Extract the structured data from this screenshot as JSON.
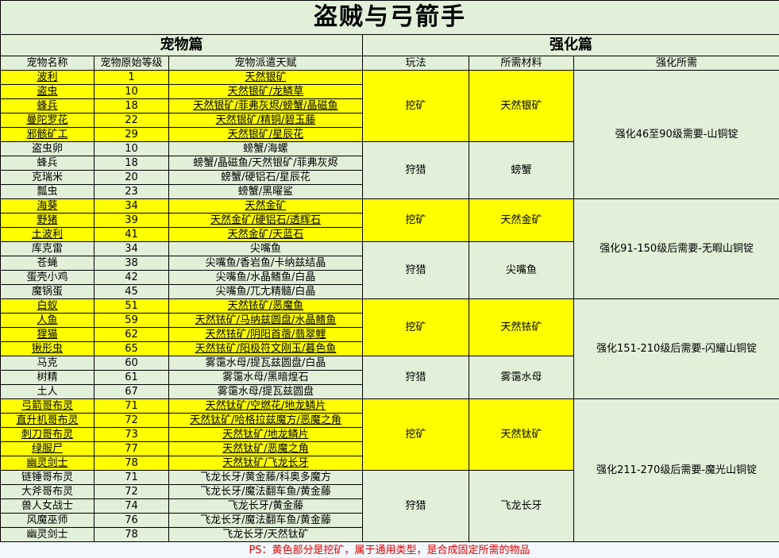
{
  "title": "盗贼与弓箭手",
  "sections": {
    "pet": "宠物篇",
    "enhance": "强化篇"
  },
  "columns": [
    "宠物名称",
    "宠物原始等级",
    "宠物派遣天赋",
    "玩法",
    "所需材料",
    "强化所需"
  ],
  "colors": {
    "mining": "#ffff00",
    "default": "#e2efd9",
    "note": "#e00000"
  },
  "groups": [
    {
      "type": "挖矿",
      "material": "天然银矿",
      "highlight": true,
      "pets": [
        {
          "name": "波利",
          "level": "1",
          "talent": "天然银矿"
        },
        {
          "name": "盗虫",
          "level": "10",
          "talent": "天然银矿/龙鳞草"
        },
        {
          "name": "蜂兵",
          "level": "18",
          "talent": "天然银矿/菲弗灰烬/螃蟹/晶磁鱼"
        },
        {
          "name": "曼陀罗花",
          "level": "22",
          "talent": "天然银矿/精铜/碧玉藤"
        },
        {
          "name": "邪骸矿工",
          "level": "29",
          "talent": "天然银矿/星辰花"
        }
      ]
    },
    {
      "type": "狩猎",
      "material": "螃蟹",
      "highlight": false,
      "pets": [
        {
          "name": "盗虫卵",
          "level": "10",
          "talent": "螃蟹/海螺"
        },
        {
          "name": "蜂兵",
          "level": "18",
          "talent": "螃蟹/晶磁鱼/天然银矿/菲弗灰烬"
        },
        {
          "name": "克瑞米",
          "level": "20",
          "talent": "螃蟹/硬铝石/星辰花"
        },
        {
          "name": "瓢虫",
          "level": "23",
          "talent": "螃蟹/黑曜鲨"
        }
      ]
    },
    {
      "type": "挖矿",
      "material": "天然金矿",
      "highlight": true,
      "pets": [
        {
          "name": "海葵",
          "level": "34",
          "talent": "天然金矿"
        },
        {
          "name": "野猪",
          "level": "39",
          "talent": "天然金矿/硬铝石/透辉石"
        },
        {
          "name": "土波利",
          "level": "41",
          "talent": "天然金矿/天蓝石"
        }
      ]
    },
    {
      "type": "狩猎",
      "material": "尖嘴鱼",
      "highlight": false,
      "pets": [
        {
          "name": "库克雷",
          "level": "34",
          "talent": "尖嘴鱼"
        },
        {
          "name": "苍蝇",
          "level": "38",
          "talent": "尖嘴鱼/香岩鱼/卡纳兹结晶"
        },
        {
          "name": "蛋壳小鸡",
          "level": "42",
          "talent": "尖嘴鱼/水晶鳍鱼/白晶"
        },
        {
          "name": "魔锅蛋",
          "level": "45",
          "talent": "尖嘴鱼/兀尢精髓/白晶"
        }
      ]
    },
    {
      "type": "挖矿",
      "material": "天然铱矿",
      "highlight": true,
      "pets": [
        {
          "name": "白蚁",
          "level": "51",
          "talent": "天然铱矿/恶魔鱼"
        },
        {
          "name": "人鱼",
          "level": "59",
          "talent": "天然铱矿/马纳兹圆盘/水晶鳍鱼"
        },
        {
          "name": "狸猫",
          "level": "62",
          "talent": "天然铱矿/阴阳首蓿/翡翠鲤"
        },
        {
          "name": "锹形虫",
          "level": "65",
          "talent": "天然铱矿/阳极符文刚玉/暮色鱼"
        }
      ]
    },
    {
      "type": "狩猎",
      "material": "雾霭水母",
      "highlight": false,
      "pets": [
        {
          "name": "马克",
          "level": "60",
          "talent": "雾霭水母/提瓦兹圆盘/白晶"
        },
        {
          "name": "树精",
          "level": "61",
          "talent": "雾霭水母/黑暗煌石"
        },
        {
          "name": "土人",
          "level": "67",
          "talent": "雾霭水母/提瓦兹圆盘"
        }
      ]
    },
    {
      "type": "挖矿",
      "material": "天然钛矿",
      "highlight": true,
      "pets": [
        {
          "name": "弓箭哥布灵",
          "level": "71",
          "talent": "天然钛矿/空燃花/地龙鳞片"
        },
        {
          "name": "直升机哥布灵",
          "level": "72",
          "talent": "天然钛矿/哈格拉兹魔方/恶魔之角"
        },
        {
          "name": "刺刀哥布灵",
          "level": "73",
          "talent": "天然钛矿/地龙鳞片"
        },
        {
          "name": "绿服尸",
          "level": "77",
          "talent": "天然钛矿/恶魔之角"
        },
        {
          "name": "幽灵剑士",
          "level": "78",
          "talent": "天然钛矿/飞龙长牙"
        }
      ]
    },
    {
      "type": "狩猎",
      "material": "飞龙长牙",
      "highlight": false,
      "pets": [
        {
          "name": "链锤哥布灵",
          "level": "71",
          "talent": "飞龙长牙/黄金藤/科奥多魔方"
        },
        {
          "name": "大斧哥布灵",
          "level": "72",
          "talent": "飞龙长牙/魔法翻车鱼/黄金藤"
        },
        {
          "name": "兽人女战士",
          "level": "74",
          "talent": "飞龙长牙/黄金藤"
        },
        {
          "name": "风魔巫师",
          "level": "76",
          "talent": "飞龙长牙/魔法翻车鱼/黄金藤"
        },
        {
          "name": "幽灵剑士",
          "level": "78",
          "talent": "飞龙长牙/天然钛矿"
        }
      ]
    }
  ],
  "enhance": [
    {
      "text": "强化46至90级需要-山铜锭",
      "groups": 2
    },
    {
      "text": "强化91-150级后需要-无暇山铜锭",
      "groups": 2
    },
    {
      "text": "强化151-210级后需要-闪耀山铜锭",
      "groups": 2
    },
    {
      "text": "强化211-270级后需要-魔光山铜锭",
      "groups": 2
    }
  ],
  "footer": "PS：黄色部分是挖矿，属于通用类型，是合成固定所需的物品"
}
